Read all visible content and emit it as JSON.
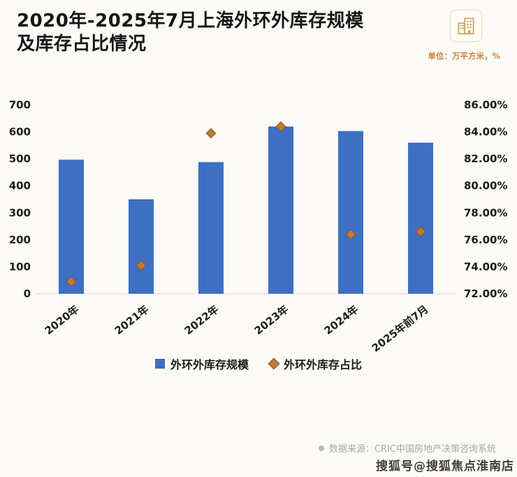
{
  "header": {
    "title_line1": "2020年-2025年7月上海外环外库存规模",
    "title_line2": "及库存占比情况",
    "unit_label": "单位：万平方米，%"
  },
  "chart_data": {
    "type": "combo",
    "subtypes": [
      "bar",
      "scatter"
    ],
    "title": "2020年-2025年7月上海外环外库存规模及库存占比情况",
    "categories": [
      "2020年",
      "2021年",
      "2022年",
      "2023年",
      "2024年",
      "2025年前7月"
    ],
    "series": [
      {
        "name": "外环外库存规模",
        "type": "bar",
        "axis": "left",
        "color": "#3e6fc3",
        "values": [
          497,
          350,
          488,
          620,
          603,
          560
        ]
      },
      {
        "name": "外环外库存占比",
        "type": "scatter",
        "marker": "diamond",
        "axis": "right",
        "color": "#bf7b35",
        "values_pct": [
          72.9,
          74.1,
          83.9,
          84.4,
          76.4,
          76.6
        ]
      }
    ],
    "left_axis": {
      "min": 0,
      "max": 700,
      "tick_values": [
        0,
        100,
        200,
        300,
        400,
        500,
        600,
        700
      ],
      "tick_labels": [
        "0",
        "100",
        "200",
        "300",
        "400",
        "500",
        "600",
        "700"
      ]
    },
    "right_axis": {
      "min": 72,
      "max": 86,
      "tick_values": [
        72,
        74,
        76,
        78,
        80,
        82,
        84,
        86
      ],
      "tick_labels": [
        "72.00%",
        "74.00%",
        "76.00%",
        "78.00%",
        "80.00%",
        "82.00%",
        "84.00%",
        "86.00%"
      ]
    },
    "legend_position": "bottom",
    "grid": false
  },
  "footer": {
    "source_label": "数据来源：CRIC中国房地产决策咨询系统",
    "watermark": "搜狐号@搜狐焦点淮南店"
  },
  "colors": {
    "bar": "#3e6fc3",
    "marker": "#bf7b35",
    "marker_stroke": "#8a5420",
    "title": "#161616",
    "unit": "#c8873c",
    "source": "#a8a8a8",
    "axis_line": "#d8d8d8"
  }
}
